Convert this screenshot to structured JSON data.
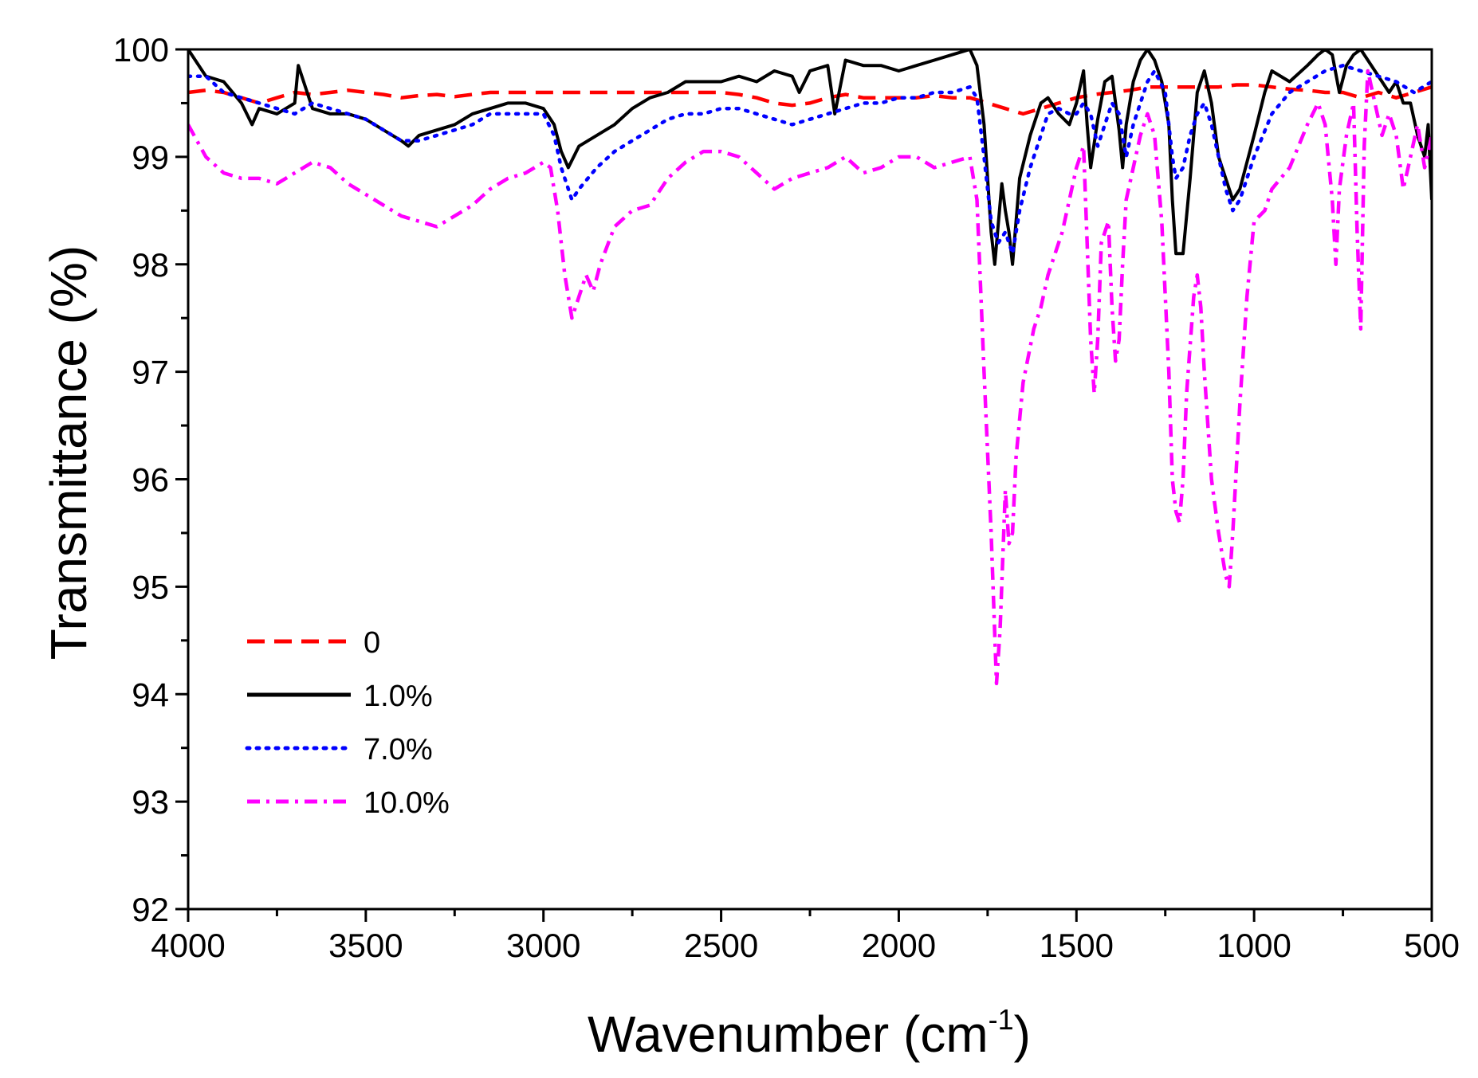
{
  "chart_data": {
    "type": "line",
    "title": "",
    "xlabel": "Wavenumber (cm",
    "xlabel_sup": "-1",
    "xlabel_close": ")",
    "ylabel": "Transmittance (%)",
    "xlim": [
      4000,
      500
    ],
    "ylim": [
      92,
      100
    ],
    "xticks": [
      4000,
      3500,
      3000,
      2500,
      2000,
      1500,
      1000,
      500
    ],
    "xtick_labels": [
      "4000",
      "3500",
      "3000",
      "2500",
      "2000",
      "1500",
      "1000",
      "500"
    ],
    "yticks": [
      92,
      93,
      94,
      95,
      96,
      97,
      98,
      99,
      100
    ],
    "ytick_labels": [
      "92",
      "93",
      "94",
      "95",
      "96",
      "97",
      "98",
      "99",
      "100"
    ],
    "legend_position": "lower-left",
    "series": [
      {
        "name": "0",
        "label": "0",
        "color": "#ff0000",
        "dash": "long-dash",
        "x": [
          4000,
          3950,
          3900,
          3850,
          3800,
          3750,
          3700,
          3650,
          3600,
          3550,
          3500,
          3450,
          3400,
          3350,
          3300,
          3250,
          3200,
          3150,
          3100,
          3050,
          3000,
          2950,
          2900,
          2850,
          2800,
          2750,
          2700,
          2650,
          2600,
          2550,
          2500,
          2450,
          2400,
          2350,
          2300,
          2250,
          2200,
          2150,
          2100,
          2050,
          2000,
          1950,
          1900,
          1850,
          1800,
          1750,
          1700,
          1650,
          1600,
          1550,
          1500,
          1450,
          1400,
          1350,
          1300,
          1250,
          1200,
          1150,
          1100,
          1050,
          1000,
          950,
          900,
          850,
          800,
          750,
          700,
          650,
          600,
          550,
          500
        ],
        "y": [
          99.6,
          99.62,
          99.6,
          99.55,
          99.5,
          99.55,
          99.6,
          99.58,
          99.6,
          99.62,
          99.6,
          99.58,
          99.55,
          99.57,
          99.58,
          99.56,
          99.58,
          99.6,
          99.6,
          99.6,
          99.6,
          99.6,
          99.6,
          99.6,
          99.6,
          99.6,
          99.6,
          99.6,
          99.6,
          99.6,
          99.6,
          99.58,
          99.55,
          99.5,
          99.48,
          99.5,
          99.55,
          99.58,
          99.55,
          99.55,
          99.55,
          99.55,
          99.57,
          99.55,
          99.55,
          99.5,
          99.45,
          99.4,
          99.45,
          99.5,
          99.55,
          99.58,
          99.6,
          99.62,
          99.65,
          99.65,
          99.65,
          99.65,
          99.65,
          99.67,
          99.67,
          99.65,
          99.63,
          99.62,
          99.6,
          99.6,
          99.55,
          99.6,
          99.55,
          99.6,
          99.65
        ]
      },
      {
        "name": "1.0%",
        "label": "1.0%",
        "color": "#000000",
        "dash": "solid",
        "x": [
          4000,
          3950,
          3900,
          3850,
          3820,
          3800,
          3750,
          3700,
          3690,
          3650,
          3600,
          3550,
          3500,
          3450,
          3400,
          3380,
          3350,
          3300,
          3250,
          3200,
          3150,
          3100,
          3050,
          3000,
          2970,
          2950,
          2930,
          2900,
          2850,
          2800,
          2750,
          2700,
          2650,
          2600,
          2550,
          2500,
          2450,
          2400,
          2350,
          2300,
          2280,
          2250,
          2200,
          2180,
          2150,
          2100,
          2050,
          2000,
          1950,
          1900,
          1850,
          1800,
          1780,
          1760,
          1740,
          1730,
          1710,
          1700,
          1690,
          1680,
          1660,
          1630,
          1600,
          1580,
          1550,
          1520,
          1500,
          1480,
          1470,
          1460,
          1440,
          1420,
          1400,
          1380,
          1370,
          1360,
          1340,
          1320,
          1300,
          1280,
          1260,
          1240,
          1230,
          1220,
          1200,
          1180,
          1160,
          1140,
          1120,
          1100,
          1080,
          1060,
          1040,
          1000,
          970,
          950,
          900,
          850,
          820,
          800,
          780,
          760,
          740,
          720,
          700,
          680,
          660,
          640,
          620,
          600,
          580,
          560,
          540,
          520,
          510,
          500
        ],
        "y": [
          100.0,
          99.75,
          99.7,
          99.5,
          99.3,
          99.45,
          99.4,
          99.5,
          99.85,
          99.45,
          99.4,
          99.4,
          99.35,
          99.25,
          99.15,
          99.1,
          99.2,
          99.25,
          99.3,
          99.4,
          99.45,
          99.5,
          99.5,
          99.45,
          99.3,
          99.05,
          98.9,
          99.1,
          99.2,
          99.3,
          99.45,
          99.55,
          99.6,
          99.7,
          99.7,
          99.7,
          99.75,
          99.7,
          99.8,
          99.75,
          99.6,
          99.8,
          99.85,
          99.4,
          99.9,
          99.85,
          99.85,
          99.8,
          99.85,
          99.9,
          99.95,
          100.0,
          99.85,
          99.3,
          98.3,
          98.0,
          98.75,
          98.5,
          98.3,
          98.0,
          98.8,
          99.2,
          99.5,
          99.55,
          99.4,
          99.3,
          99.5,
          99.8,
          99.3,
          98.9,
          99.35,
          99.7,
          99.75,
          99.25,
          98.9,
          99.3,
          99.7,
          99.9,
          100.0,
          99.9,
          99.7,
          99.3,
          98.6,
          98.1,
          98.1,
          98.8,
          99.6,
          99.8,
          99.5,
          99.0,
          98.8,
          98.6,
          98.7,
          99.2,
          99.6,
          99.8,
          99.7,
          99.85,
          99.95,
          100.0,
          99.95,
          99.6,
          99.85,
          99.95,
          100.0,
          99.9,
          99.8,
          99.7,
          99.6,
          99.7,
          99.5,
          99.5,
          99.2,
          99.0,
          99.3,
          98.6
        ]
      },
      {
        "name": "7.0%",
        "label": "7.0%",
        "color": "#0000ff",
        "dash": "dotted",
        "x": [
          4000,
          3950,
          3900,
          3850,
          3800,
          3750,
          3700,
          3650,
          3600,
          3550,
          3500,
          3450,
          3400,
          3350,
          3300,
          3250,
          3200,
          3150,
          3100,
          3050,
          3000,
          2970,
          2950,
          2920,
          2900,
          2850,
          2800,
          2750,
          2700,
          2650,
          2600,
          2550,
          2500,
          2450,
          2400,
          2350,
          2300,
          2250,
          2200,
          2150,
          2100,
          2050,
          2000,
          1950,
          1900,
          1850,
          1800,
          1780,
          1760,
          1740,
          1720,
          1700,
          1680,
          1660,
          1630,
          1600,
          1580,
          1550,
          1520,
          1500,
          1480,
          1460,
          1440,
          1420,
          1400,
          1380,
          1360,
          1340,
          1320,
          1300,
          1280,
          1250,
          1230,
          1220,
          1200,
          1180,
          1160,
          1140,
          1120,
          1100,
          1080,
          1060,
          1040,
          1000,
          950,
          900,
          850,
          800,
          750,
          700,
          650,
          600,
          550,
          500
        ],
        "y": [
          99.75,
          99.75,
          99.6,
          99.55,
          99.5,
          99.45,
          99.4,
          99.5,
          99.45,
          99.4,
          99.35,
          99.25,
          99.15,
          99.15,
          99.2,
          99.25,
          99.3,
          99.4,
          99.4,
          99.4,
          99.4,
          99.2,
          98.9,
          98.6,
          98.7,
          98.9,
          99.05,
          99.15,
          99.25,
          99.35,
          99.4,
          99.4,
          99.45,
          99.45,
          99.4,
          99.35,
          99.3,
          99.35,
          99.4,
          99.45,
          99.5,
          99.5,
          99.55,
          99.55,
          99.6,
          99.6,
          99.65,
          99.55,
          99.0,
          98.4,
          98.2,
          98.3,
          98.1,
          98.5,
          98.9,
          99.2,
          99.4,
          99.45,
          99.4,
          99.4,
          99.5,
          99.4,
          99.1,
          99.3,
          99.5,
          99.4,
          99.0,
          99.3,
          99.5,
          99.7,
          99.8,
          99.6,
          99.0,
          98.8,
          98.9,
          99.2,
          99.4,
          99.5,
          99.3,
          99.0,
          98.7,
          98.5,
          98.6,
          99.0,
          99.4,
          99.6,
          99.7,
          99.8,
          99.85,
          99.8,
          99.75,
          99.7,
          99.6,
          99.7
        ]
      },
      {
        "name": "10.0%",
        "label": "10.0%",
        "color": "#ff00ff",
        "dash": "dash-dot",
        "x": [
          4000,
          3950,
          3900,
          3850,
          3800,
          3750,
          3700,
          3650,
          3600,
          3550,
          3500,
          3450,
          3400,
          3350,
          3300,
          3250,
          3200,
          3150,
          3100,
          3050,
          3000,
          2980,
          2960,
          2940,
          2920,
          2900,
          2880,
          2860,
          2840,
          2800,
          2750,
          2700,
          2650,
          2600,
          2550,
          2500,
          2450,
          2400,
          2350,
          2300,
          2250,
          2200,
          2150,
          2100,
          2050,
          2000,
          1950,
          1900,
          1850,
          1800,
          1780,
          1760,
          1740,
          1725,
          1715,
          1700,
          1690,
          1680,
          1670,
          1650,
          1620,
          1600,
          1580,
          1560,
          1540,
          1520,
          1500,
          1480,
          1470,
          1460,
          1450,
          1440,
          1430,
          1410,
          1400,
          1390,
          1380,
          1370,
          1360,
          1340,
          1320,
          1300,
          1280,
          1260,
          1240,
          1230,
          1220,
          1210,
          1200,
          1190,
          1170,
          1160,
          1150,
          1140,
          1120,
          1100,
          1080,
          1070,
          1060,
          1040,
          1020,
          1000,
          970,
          950,
          900,
          850,
          820,
          800,
          780,
          770,
          760,
          740,
          720,
          710,
          700,
          690,
          680,
          660,
          640,
          620,
          600,
          580,
          560,
          540,
          520,
          500
        ],
        "y": [
          99.3,
          99.0,
          98.85,
          98.8,
          98.8,
          98.75,
          98.85,
          98.95,
          98.9,
          98.75,
          98.65,
          98.55,
          98.45,
          98.4,
          98.35,
          98.45,
          98.55,
          98.7,
          98.8,
          98.85,
          98.95,
          98.9,
          98.5,
          97.9,
          97.5,
          97.7,
          97.9,
          97.75,
          98.0,
          98.35,
          98.5,
          98.55,
          98.8,
          98.95,
          99.05,
          99.05,
          99.0,
          98.85,
          98.7,
          98.8,
          98.85,
          98.9,
          99.0,
          98.85,
          98.9,
          99.0,
          99.0,
          98.9,
          98.95,
          99.0,
          98.6,
          97.0,
          95.5,
          94.1,
          94.6,
          95.9,
          95.4,
          95.5,
          96.2,
          96.9,
          97.4,
          97.6,
          97.9,
          98.1,
          98.3,
          98.6,
          98.9,
          99.1,
          98.2,
          97.3,
          96.8,
          97.3,
          98.2,
          98.4,
          97.6,
          97.1,
          97.3,
          98.0,
          98.6,
          98.9,
          99.2,
          99.4,
          99.2,
          98.4,
          97.0,
          96.0,
          95.7,
          95.6,
          96.0,
          96.8,
          97.7,
          97.9,
          97.6,
          97.0,
          96.0,
          95.5,
          95.1,
          95.0,
          95.5,
          96.7,
          97.7,
          98.4,
          98.5,
          98.7,
          98.9,
          99.3,
          99.5,
          99.3,
          98.6,
          98.0,
          98.7,
          99.2,
          99.5,
          98.3,
          97.4,
          99.1,
          99.8,
          99.5,
          99.2,
          99.4,
          99.2,
          98.7,
          99.0,
          99.3,
          98.9,
          99.2
        ]
      }
    ]
  }
}
